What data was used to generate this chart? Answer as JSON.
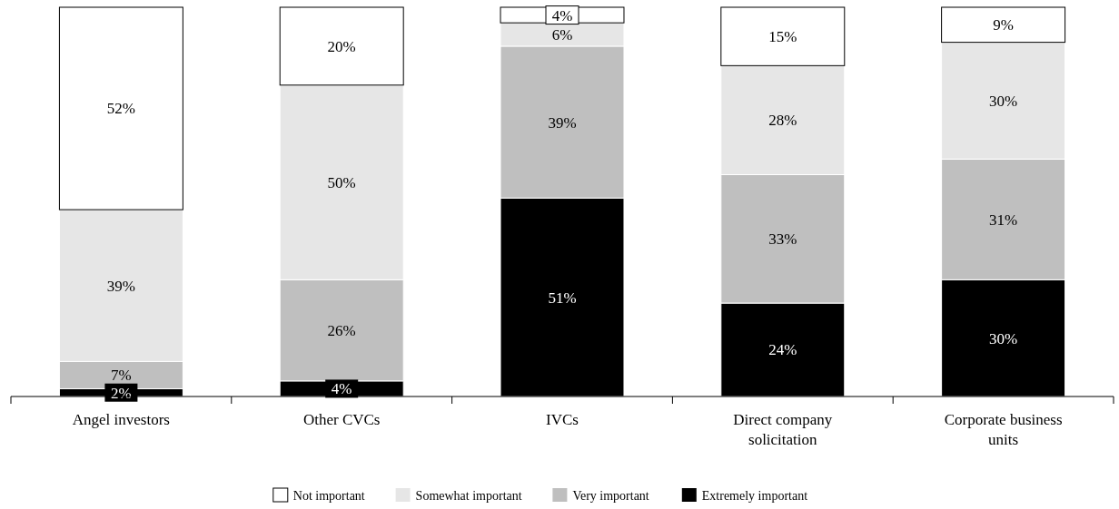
{
  "chart_data": {
    "type": "bar",
    "stacked": true,
    "legend": "bottom",
    "categories": [
      "Angel investors",
      "Other CVCs",
      "IVCs",
      "Direct company solicitation",
      "Corporate business units"
    ],
    "series": [
      {
        "name": "Extremely important",
        "color": "#000000",
        "values": [
          2,
          4,
          51,
          24,
          30
        ],
        "value_labels": [
          "2%",
          "4%",
          "51%",
          "24%",
          "30%"
        ]
      },
      {
        "name": "Very important",
        "color": "#bfbfbf",
        "values": [
          7,
          26,
          39,
          33,
          31
        ],
        "value_labels": [
          "7%",
          "26%",
          "39%",
          "33%",
          "31%"
        ]
      },
      {
        "name": "Somewhat important",
        "color": "#e6e6e6",
        "values": [
          39,
          50,
          6,
          28,
          30
        ],
        "value_labels": [
          "39%",
          "50%",
          "6%",
          "28%",
          "30%"
        ]
      },
      {
        "name": "Not important",
        "color": "#ffffff",
        "values": [
          52,
          20,
          4,
          15,
          9
        ],
        "value_labels": [
          "52%",
          "20%",
          "4%",
          "15%",
          "9%"
        ]
      }
    ]
  }
}
